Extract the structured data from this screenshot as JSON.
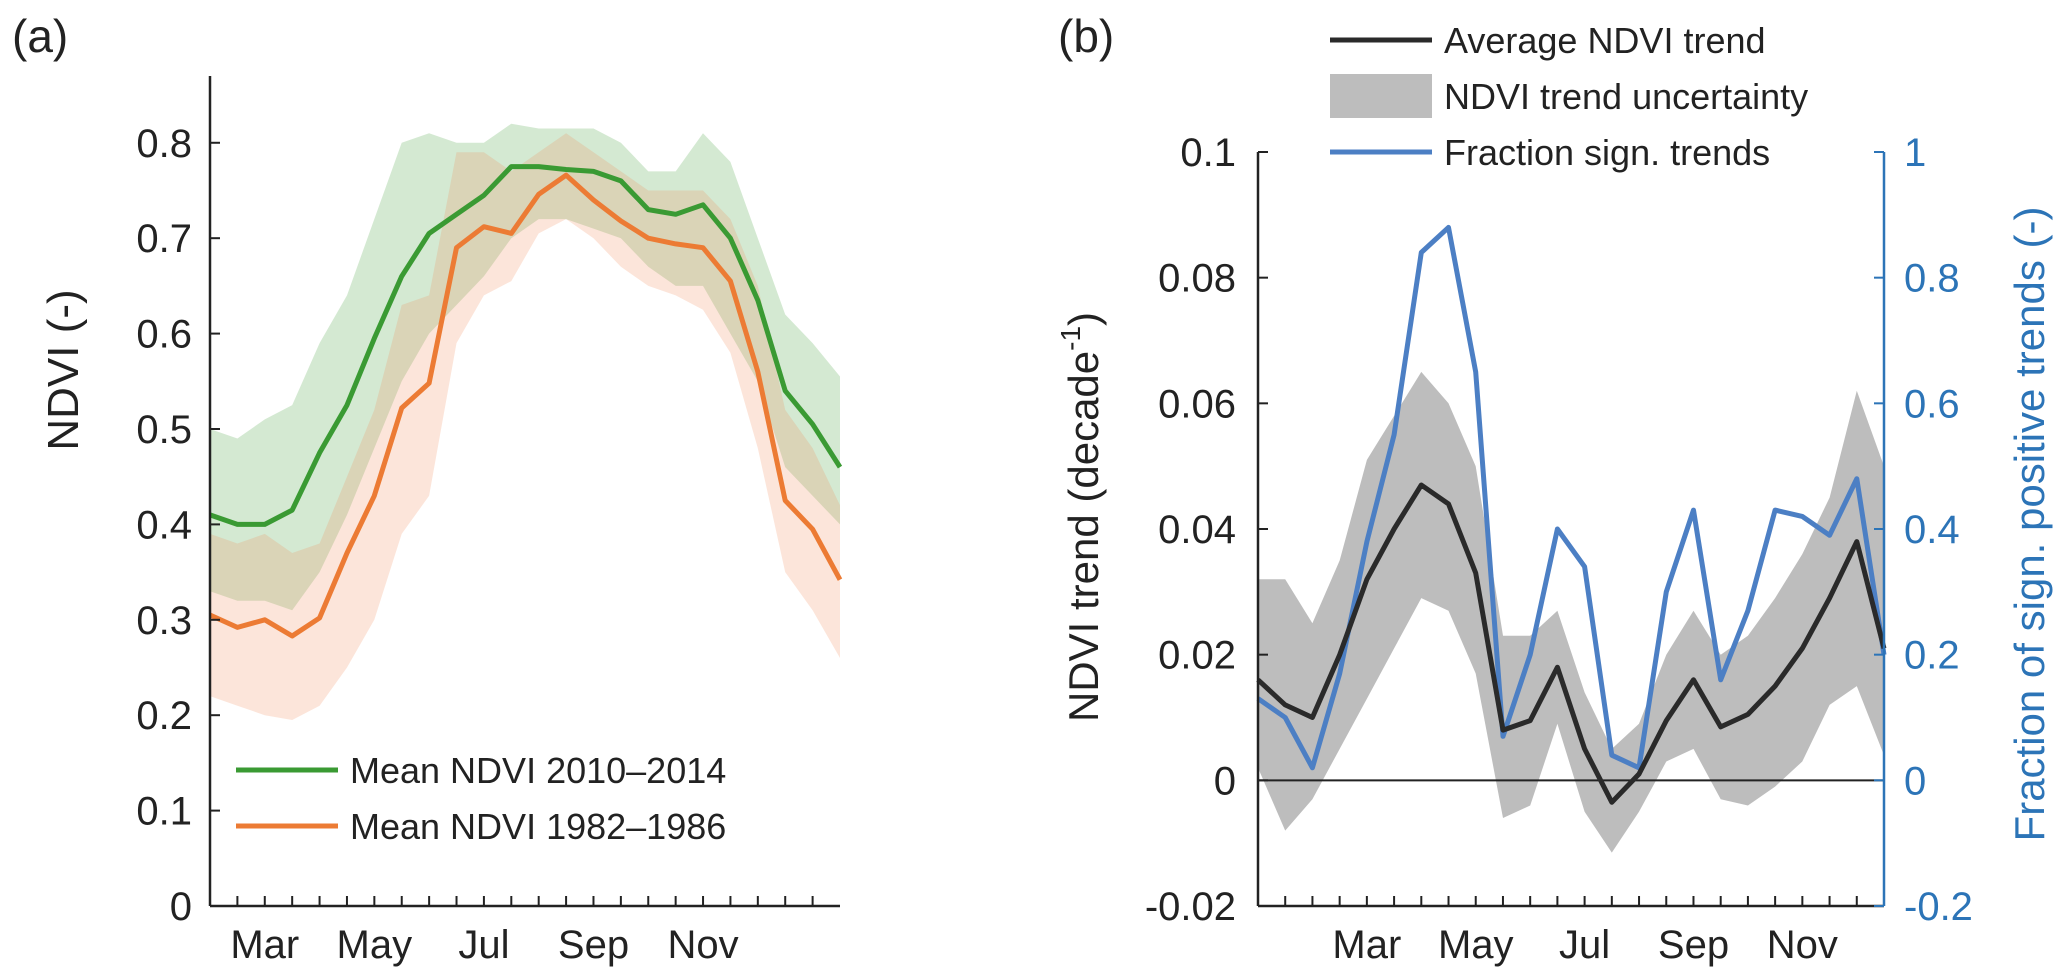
{
  "chart_data": [
    {
      "panel_label": "(a)",
      "type": "line",
      "xlabel": "",
      "ylabel": "NDVI (-)",
      "xlim": [
        0,
        23
      ],
      "ylim": [
        0,
        0.87
      ],
      "x_tick_labels": [
        {
          "pos": 2,
          "label": "Mar"
        },
        {
          "pos": 6,
          "label": "May"
        },
        {
          "pos": 10,
          "label": "Jul"
        },
        {
          "pos": 14,
          "label": "Sep"
        },
        {
          "pos": 18,
          "label": "Nov"
        }
      ],
      "x_minor_ticks": [
        1,
        2,
        3,
        4,
        5,
        6,
        7,
        8,
        9,
        10,
        11,
        12,
        13,
        14,
        15,
        16,
        17,
        18,
        19,
        20,
        21,
        22
      ],
      "y_ticks": [
        0,
        0.1,
        0.2,
        0.3,
        0.4,
        0.5,
        0.6,
        0.7,
        0.8
      ],
      "y_tick_labels": [
        "0",
        "0.1",
        "0.2",
        "0.3",
        "0.4",
        "0.5",
        "0.6",
        "0.7",
        "0.8"
      ],
      "x": [
        0,
        1,
        2,
        3,
        4,
        5,
        6,
        7,
        8,
        9,
        10,
        11,
        12,
        13,
        14,
        15,
        16,
        17,
        18,
        19,
        20,
        21,
        22,
        23
      ],
      "series": [
        {
          "name": "Mean NDVI 2010–2014",
          "color": "#3a9a33",
          "band_color": "#3a9a33",
          "values": [
            0.41,
            0.4,
            0.4,
            0.415,
            0.475,
            0.525,
            0.595,
            0.66,
            0.705,
            0.725,
            0.745,
            0.775,
            0.775,
            0.772,
            0.77,
            0.76,
            0.73,
            0.725,
            0.735,
            0.7,
            0.635,
            0.54,
            0.505,
            0.46
          ],
          "upper": [
            0.5,
            0.49,
            0.51,
            0.525,
            0.59,
            0.64,
            0.72,
            0.8,
            0.81,
            0.8,
            0.8,
            0.82,
            0.815,
            0.815,
            0.815,
            0.8,
            0.77,
            0.77,
            0.81,
            0.78,
            0.7,
            0.62,
            0.59,
            0.555
          ],
          "lower": [
            0.33,
            0.32,
            0.32,
            0.31,
            0.35,
            0.41,
            0.48,
            0.55,
            0.6,
            0.63,
            0.66,
            0.7,
            0.72,
            0.72,
            0.71,
            0.7,
            0.67,
            0.65,
            0.65,
            0.6,
            0.55,
            0.46,
            0.43,
            0.4
          ]
        },
        {
          "name": "Mean NDVI 1982–1986",
          "color": "#ec7b34",
          "band_color": "#f08a55",
          "values": [
            0.305,
            0.292,
            0.3,
            0.283,
            0.302,
            0.37,
            0.43,
            0.522,
            0.548,
            0.69,
            0.712,
            0.705,
            0.746,
            0.766,
            0.74,
            0.718,
            0.7,
            0.694,
            0.69,
            0.655,
            0.56,
            0.425,
            0.395,
            0.342
          ],
          "upper": [
            0.39,
            0.38,
            0.39,
            0.37,
            0.38,
            0.45,
            0.52,
            0.63,
            0.64,
            0.79,
            0.79,
            0.77,
            0.79,
            0.81,
            0.79,
            0.77,
            0.75,
            0.75,
            0.75,
            0.72,
            0.65,
            0.52,
            0.48,
            0.42
          ],
          "lower": [
            0.22,
            0.21,
            0.2,
            0.195,
            0.21,
            0.25,
            0.3,
            0.39,
            0.43,
            0.59,
            0.64,
            0.655,
            0.705,
            0.72,
            0.7,
            0.67,
            0.65,
            0.64,
            0.625,
            0.58,
            0.48,
            0.35,
            0.31,
            0.26
          ]
        }
      ],
      "legend": [
        {
          "label": "Mean NDVI 2010–2014",
          "color": "#3a9a33"
        },
        {
          "label": "Mean NDVI 1982–1986",
          "color": "#ec7b34"
        }
      ],
      "legend_position": "lower-center"
    },
    {
      "panel_label": "(b)",
      "type": "line",
      "xlabel": "",
      "ylabel": "NDVI trend (decade",
      "ylabel_superscript": "-1",
      "ylabel_suffix": ")",
      "y2label": "Fraction of sign. positive trends (-)",
      "xlim": [
        0,
        23
      ],
      "ylim": [
        -0.02,
        0.1
      ],
      "y2lim": [
        -0.2,
        1
      ],
      "x_tick_labels": [
        {
          "pos": 4,
          "label": "Mar"
        },
        {
          "pos": 8,
          "label": "May"
        },
        {
          "pos": 12,
          "label": "Jul"
        },
        {
          "pos": 16,
          "label": "Sep"
        },
        {
          "pos": 20,
          "label": "Nov"
        }
      ],
      "x_minor_ticks": [
        1,
        2,
        3,
        4,
        5,
        6,
        7,
        8,
        9,
        10,
        11,
        12,
        13,
        14,
        15,
        16,
        17,
        18,
        19,
        20,
        21,
        22
      ],
      "y_ticks": [
        -0.02,
        0,
        0.02,
        0.04,
        0.06,
        0.08,
        0.1
      ],
      "y_tick_labels": [
        "-0.02",
        "0",
        "0.02",
        "0.04",
        "0.06",
        "0.08",
        "0.1"
      ],
      "y2_ticks": [
        -0.2,
        0,
        0.2,
        0.4,
        0.6,
        0.8,
        1
      ],
      "y2_tick_labels": [
        "-0.2",
        "0",
        "0.2",
        "0.4",
        "0.6",
        "0.8",
        "1"
      ],
      "zero_line": 0,
      "x": [
        0,
        1,
        2,
        3,
        4,
        5,
        6,
        7,
        8,
        9,
        10,
        11,
        12,
        13,
        14,
        15,
        16,
        17,
        18,
        19,
        20,
        21,
        22,
        23
      ],
      "trend": {
        "name": "Average NDVI trend",
        "color": "#2a2a2a",
        "values": [
          0.016,
          0.012,
          0.01,
          0.02,
          0.032,
          0.04,
          0.047,
          0.044,
          0.033,
          0.008,
          0.0095,
          0.018,
          0.005,
          -0.0035,
          0.001,
          0.0095,
          0.016,
          0.0085,
          0.0105,
          0.015,
          0.021,
          0.029,
          0.038,
          0.021
        ]
      },
      "uncertainty": {
        "name": "NDVI trend uncertainty",
        "color": "#bdbdbd",
        "upper": [
          0.032,
          0.032,
          0.025,
          0.035,
          0.051,
          0.058,
          0.065,
          0.06,
          0.05,
          0.023,
          0.023,
          0.027,
          0.014,
          0.005,
          0.009,
          0.02,
          0.027,
          0.02,
          0.023,
          0.029,
          0.036,
          0.045,
          0.062,
          0.05
        ],
        "lower": [
          0.002,
          -0.008,
          -0.003,
          0.005,
          0.013,
          0.021,
          0.029,
          0.027,
          0.017,
          -0.006,
          -0.004,
          0.009,
          -0.005,
          -0.0115,
          -0.005,
          0.003,
          0.005,
          -0.003,
          -0.004,
          -0.001,
          0.003,
          0.012,
          0.015,
          0.004
        ]
      },
      "fraction": {
        "name": "Fraction sign. trends",
        "color": "#4c7fc4",
        "values": [
          0.13,
          0.1,
          0.02,
          0.17,
          0.38,
          0.55,
          0.84,
          0.88,
          0.65,
          0.07,
          0.2,
          0.4,
          0.34,
          0.04,
          0.02,
          0.3,
          0.43,
          0.16,
          0.27,
          0.43,
          0.42,
          0.39,
          0.48,
          0.2
        ]
      },
      "legend": [
        {
          "label": "Average NDVI trend",
          "kind": "line",
          "color": "#2a2a2a"
        },
        {
          "label": "NDVI trend uncertainty",
          "kind": "patch",
          "color": "#bdbdbd"
        },
        {
          "label": "Fraction sign. trends",
          "kind": "line",
          "color": "#4c7fc4"
        }
      ],
      "legend_position": "top"
    }
  ],
  "colors": {
    "axis": "#222222",
    "axis_right": "#2c74b7"
  }
}
